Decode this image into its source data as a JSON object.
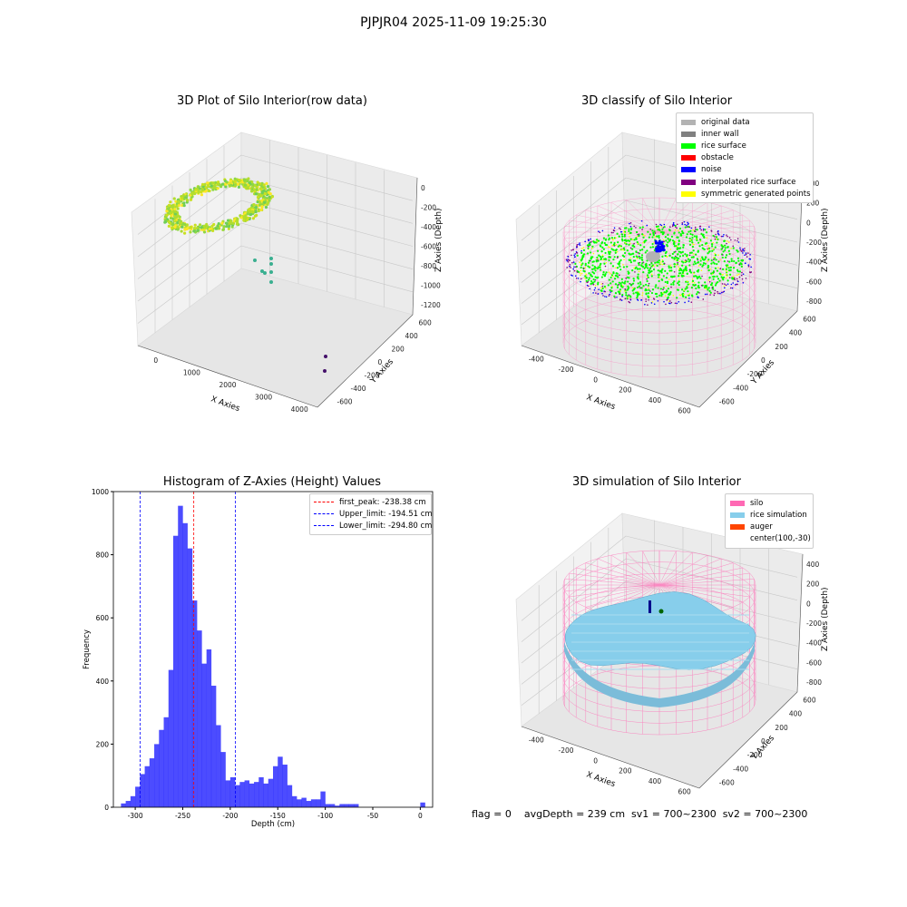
{
  "suptitle": "PJPJR04 2025-11-09 19:25:30",
  "footer": "flag = 0    avgDepth = 239 cm  sv1 = 700~2300  sv2 = 700~2300",
  "colors": {
    "rice": "#00ff00",
    "noise": "#0000ff",
    "interp": "#800080",
    "symm": "#ffff00",
    "orig": "#b3b3b3",
    "wall": "#808080",
    "obstacle": "#ff0000",
    "silo": "#ff69b4",
    "ricesim": "#87ceeb",
    "auger": "#ff4500",
    "hist": "#0000ff"
  },
  "chart_data": [
    {
      "type": "scatter",
      "title": "3D Plot of Silo Interior(row data)",
      "xlabel": "X Axies",
      "ylabel": "Y Axies",
      "zlabel": "Z Axies (Depth)",
      "x_ticks": [
        "0",
        "1000",
        "2000",
        "3000",
        "4000"
      ],
      "y_ticks": [
        "600",
        "400",
        "200",
        "0",
        "-200",
        "-400",
        "-600"
      ],
      "z_ticks": [
        "0",
        "-200",
        "-400",
        "-600",
        "-800",
        "-1000",
        "-1200"
      ],
      "series": [
        {
          "values": "dense ring of points near x≈0, depth -200 to -500"
        },
        {
          "values": "scattered points near x≈500, depth ≈ -800"
        },
        {
          "values": "two points near x≈4300, y≈-600"
        }
      ]
    },
    {
      "type": "scatter",
      "title": "3D classify of Silo Interior",
      "xlabel": "X Axies",
      "ylabel": "Y Axies",
      "zlabel": "Z Axies (Depth)",
      "x_ticks": [
        "-400",
        "-200",
        "0",
        "200",
        "400",
        "600"
      ],
      "y_ticks": [
        "600",
        "400",
        "200",
        "0",
        "-200",
        "-400",
        "-600"
      ],
      "z_ticks": [
        "400",
        "200",
        "0",
        "-200",
        "-400",
        "-600",
        "-800"
      ],
      "legend": [
        "original data",
        "inner wall",
        "rice surface",
        "obstacle",
        "noise",
        "interpolated rice surface",
        "symmetric generated points"
      ]
    },
    {
      "type": "bar",
      "title": "Histogram of Z-Axies (Height) Values",
      "xlabel": "Depth (cm)",
      "ylabel": "Frequency",
      "xlim": [
        -323,
        13
      ],
      "ylim": [
        0,
        1000
      ],
      "x_ticks": [
        "-300",
        "-250",
        "-200",
        "-150",
        "-100",
        "-50",
        "0"
      ],
      "y_ticks": [
        "0",
        "200",
        "400",
        "600",
        "800",
        "1000"
      ],
      "bin_width": 5,
      "bin_starts": [
        -315,
        -310,
        -305,
        -300,
        -295,
        -290,
        -285,
        -280,
        -275,
        -270,
        -265,
        -260,
        -255,
        -250,
        -245,
        -240,
        -235,
        -230,
        -225,
        -220,
        -215,
        -210,
        -205,
        -200,
        -195,
        -190,
        -185,
        -180,
        -175,
        -170,
        -165,
        -160,
        -155,
        -150,
        -145,
        -140,
        -135,
        -130,
        -125,
        -120,
        -115,
        -110,
        -105,
        -100,
        -95,
        -90,
        -85,
        -80,
        -75,
        -70,
        -65,
        -60,
        -55,
        -50,
        -45,
        -40,
        -35,
        -30,
        -25,
        -20,
        -15,
        -10,
        -5,
        0
      ],
      "values": [
        12,
        20,
        35,
        65,
        105,
        130,
        155,
        200,
        245,
        285,
        435,
        860,
        955,
        900,
        820,
        655,
        560,
        455,
        500,
        385,
        260,
        175,
        85,
        95,
        70,
        80,
        85,
        75,
        80,
        95,
        75,
        90,
        130,
        160,
        135,
        70,
        35,
        25,
        30,
        20,
        25,
        25,
        50,
        10,
        10,
        5,
        10,
        10,
        10,
        10,
        0,
        0,
        0,
        0,
        0,
        0,
        0,
        0,
        0,
        0,
        0,
        0,
        0,
        15
      ],
      "vlines": [
        {
          "label": "first_peak: -238.38 cm",
          "x": -238.38,
          "color": "#ff0000"
        },
        {
          "label": "Upper_limit: -194.51 cm",
          "x": -194.51,
          "color": "#0000ff"
        },
        {
          "label": "Lower_limit: -294.80 cm",
          "x": -294.8,
          "color": "#0000ff"
        }
      ]
    },
    {
      "type": "surface",
      "title": "3D simulation of Silo Interior",
      "xlabel": "X Axies",
      "ylabel": "Y Axies",
      "zlabel": "Z Axies (Depth)",
      "x_ticks": [
        "-400",
        "-200",
        "0",
        "200",
        "400",
        "600"
      ],
      "y_ticks": [
        "600",
        "400",
        "200",
        "0",
        "-200",
        "-400",
        "-600"
      ],
      "z_ticks": [
        "400",
        "200",
        "0",
        "-200",
        "-400",
        "-600",
        "-800"
      ],
      "legend": [
        "silo",
        "rice simulation",
        "auger",
        "center(100,-30)"
      ]
    }
  ]
}
